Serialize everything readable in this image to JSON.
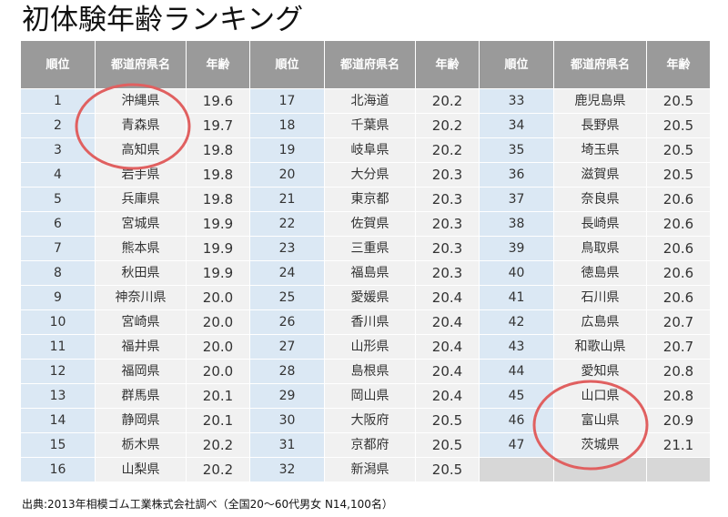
{
  "title": "初体験年齢ランキング",
  "headers": [
    "順位",
    "都道府県名",
    "年齢"
  ],
  "columns": [
    [
      {
        "rank": "1",
        "pref": "沖縄県",
        "age": "19.6"
      },
      {
        "rank": "2",
        "pref": "青森県",
        "age": "19.7"
      },
      {
        "rank": "3",
        "pref": "高知県",
        "age": "19.8"
      },
      {
        "rank": "4",
        "pref": "岩手県",
        "age": "19.8"
      },
      {
        "rank": "5",
        "pref": "兵庫県",
        "age": "19.8"
      },
      {
        "rank": "6",
        "pref": "宮城県",
        "age": "19.9"
      },
      {
        "rank": "7",
        "pref": "熊本県",
        "age": "19.9"
      },
      {
        "rank": "8",
        "pref": "秋田県",
        "age": "19.9"
      },
      {
        "rank": "9",
        "pref": "神奈川県",
        "age": "20.0"
      },
      {
        "rank": "10",
        "pref": "宮崎県",
        "age": "20.0"
      },
      {
        "rank": "11",
        "pref": "福井県",
        "age": "20.0"
      },
      {
        "rank": "12",
        "pref": "福岡県",
        "age": "20.0"
      },
      {
        "rank": "13",
        "pref": "群馬県",
        "age": "20.1"
      },
      {
        "rank": "14",
        "pref": "静岡県",
        "age": "20.1"
      },
      {
        "rank": "15",
        "pref": "栃木県",
        "age": "20.2"
      },
      {
        "rank": "16",
        "pref": "山梨県",
        "age": "20.2"
      }
    ],
    [
      {
        "rank": "17",
        "pref": "北海道",
        "age": "20.2"
      },
      {
        "rank": "18",
        "pref": "千葉県",
        "age": "20.2"
      },
      {
        "rank": "19",
        "pref": "岐阜県",
        "age": "20.2"
      },
      {
        "rank": "20",
        "pref": "大分県",
        "age": "20.3"
      },
      {
        "rank": "21",
        "pref": "東京都",
        "age": "20.3"
      },
      {
        "rank": "22",
        "pref": "佐賀県",
        "age": "20.3"
      },
      {
        "rank": "23",
        "pref": "三重県",
        "age": "20.3"
      },
      {
        "rank": "24",
        "pref": "福島県",
        "age": "20.3"
      },
      {
        "rank": "25",
        "pref": "愛媛県",
        "age": "20.4"
      },
      {
        "rank": "26",
        "pref": "香川県",
        "age": "20.4"
      },
      {
        "rank": "27",
        "pref": "山形県",
        "age": "20.4"
      },
      {
        "rank": "28",
        "pref": "島根県",
        "age": "20.4"
      },
      {
        "rank": "29",
        "pref": "岡山県",
        "age": "20.4"
      },
      {
        "rank": "30",
        "pref": "大阪府",
        "age": "20.5"
      },
      {
        "rank": "31",
        "pref": "京都府",
        "age": "20.5"
      },
      {
        "rank": "32",
        "pref": "新潟県",
        "age": "20.5"
      }
    ],
    [
      {
        "rank": "33",
        "pref": "鹿児島県",
        "age": "20.5"
      },
      {
        "rank": "34",
        "pref": "長野県",
        "age": "20.5"
      },
      {
        "rank": "35",
        "pref": "埼玉県",
        "age": "20.5"
      },
      {
        "rank": "36",
        "pref": "滋賀県",
        "age": "20.5"
      },
      {
        "rank": "37",
        "pref": "奈良県",
        "age": "20.6"
      },
      {
        "rank": "38",
        "pref": "長崎県",
        "age": "20.6"
      },
      {
        "rank": "39",
        "pref": "鳥取県",
        "age": "20.6"
      },
      {
        "rank": "40",
        "pref": "徳島県",
        "age": "20.6"
      },
      {
        "rank": "41",
        "pref": "石川県",
        "age": "20.6"
      },
      {
        "rank": "42",
        "pref": "広島県",
        "age": "20.7"
      },
      {
        "rank": "43",
        "pref": "和歌山県",
        "age": "20.7"
      },
      {
        "rank": "44",
        "pref": "愛知県",
        "age": "20.8"
      },
      {
        "rank": "45",
        "pref": "山口県",
        "age": "20.8"
      },
      {
        "rank": "46",
        "pref": "富山県",
        "age": "20.9"
      },
      {
        "rank": "47",
        "pref": "茨城県",
        "age": "21.1"
      },
      {
        "rank": "",
        "pref": "",
        "age": ""
      }
    ]
  ],
  "source": "出典:2013年相模ゴム工業株式会社調べ（全国20～60代男女 N14,100名）",
  "colors": {
    "header_bg": "#9a9a9a",
    "rank_bg": "#dbe8f4",
    "cell_bg": "#f1f1f1",
    "empty_bg": "#d7d7d7",
    "highlight_circle": "#e06060"
  }
}
